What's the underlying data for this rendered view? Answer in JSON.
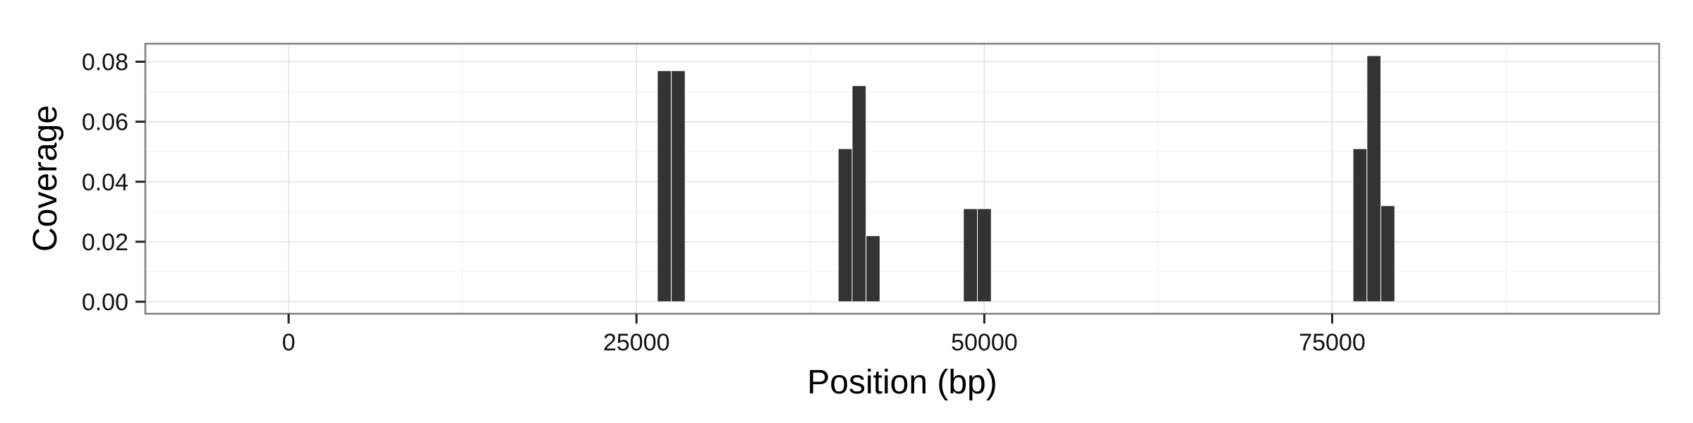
{
  "chart_data": {
    "type": "bar",
    "xlabel": "Position (bp)",
    "ylabel": "Coverage",
    "xlim": [
      -10300,
      98500
    ],
    "ylim": [
      -0.004,
      0.086
    ],
    "x_ticks": [
      0,
      25000,
      50000,
      75000
    ],
    "x_tick_labels": [
      "0",
      "25000",
      "50000",
      "75000"
    ],
    "x_minor_ticks": [
      12500,
      37500,
      62500,
      87500
    ],
    "y_ticks": [
      0.0,
      0.02,
      0.04,
      0.06,
      0.08
    ],
    "y_tick_labels": [
      "0.00",
      "0.02",
      "0.04",
      "0.06",
      "0.08"
    ],
    "bin_width": 1000,
    "grid": true,
    "bar_color": "#333333",
    "x": [
      27000,
      28000,
      40000,
      41000,
      42000,
      49000,
      50000,
      77000,
      78000,
      79000
    ],
    "values": [
      0.077,
      0.077,
      0.051,
      0.072,
      0.022,
      0.031,
      0.031,
      0.051,
      0.082,
      0.032
    ]
  }
}
